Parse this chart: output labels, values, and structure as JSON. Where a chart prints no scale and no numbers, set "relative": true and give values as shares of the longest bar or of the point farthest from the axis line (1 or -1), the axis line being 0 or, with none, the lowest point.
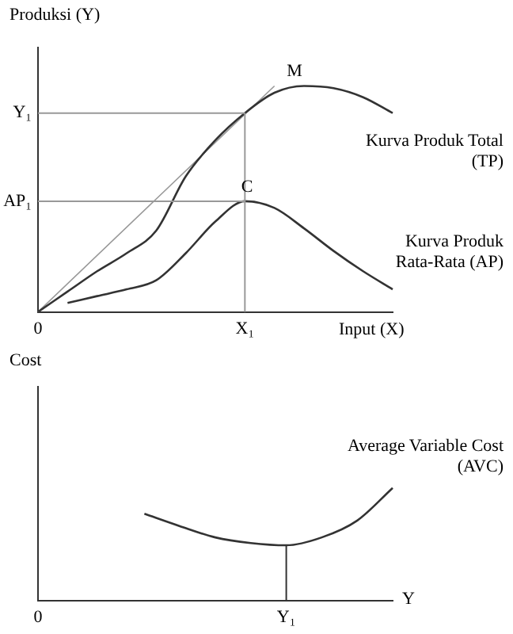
{
  "chart_data": [
    {
      "type": "line",
      "ylabel": "Produksi (Y)",
      "xlabel": "Input (X)",
      "categories": [
        "0",
        null,
        null,
        null,
        null,
        null,
        null,
        "X₁",
        null,
        null,
        null,
        null,
        null
      ],
      "relative": true,
      "grid": false,
      "legend": false,
      "marker": "none",
      "line_style": "solid",
      "series": [
        {
          "name": "Kurva Produk Total (TP)",
          "color": "#333333",
          "values": [
            0,
            0.09,
            0.18,
            0.26,
            0.36,
            0.6,
            0.76,
            0.88,
            0.97,
            1.0,
            0.99,
            0.95,
            0.88
          ]
        },
        {
          "name": "Kurva Produk Rata-Rata (AP)",
          "color": "#333333",
          "values": [
            null,
            0.04,
            0.07,
            0.1,
            0.14,
            0.26,
            0.4,
            0.49,
            0.46,
            0.37,
            0.27,
            0.18,
            0.1
          ]
        },
        {
          "color": "#999999",
          "values": [
            0,
            null,
            null,
            null,
            null,
            null,
            null,
            null,
            1.0,
            null,
            null,
            null,
            null
          ]
        }
      ],
      "ref_lines": [
        {
          "axis": "y",
          "value": 0.88,
          "label": "Y₁",
          "color": "#999999"
        },
        {
          "axis": "y",
          "value": 0.49,
          "label": "AP₁",
          "color": "#999999"
        },
        {
          "axis": "x",
          "value": "X₁",
          "color": "#999999"
        }
      ],
      "annotations": [
        "M",
        "C"
      ]
    },
    {
      "type": "line",
      "ylabel": "Cost",
      "xlabel": "Y",
      "categories": [
        "0",
        null,
        null,
        null,
        null,
        null,
        null,
        "Y₁",
        null,
        null,
        null
      ],
      "relative": true,
      "grid": false,
      "legend": false,
      "marker": "none",
      "line_style": "solid",
      "series": [
        {
          "name": "Average Variable Cost (AVC)",
          "color": "#333333",
          "values": [
            null,
            null,
            null,
            0.77,
            0.66,
            0.56,
            0.51,
            0.49,
            0.56,
            0.71,
            1.0
          ]
        }
      ],
      "ref_lines": [
        {
          "axis": "x",
          "value": "Y₁",
          "color": "#333333"
        }
      ]
    }
  ]
}
